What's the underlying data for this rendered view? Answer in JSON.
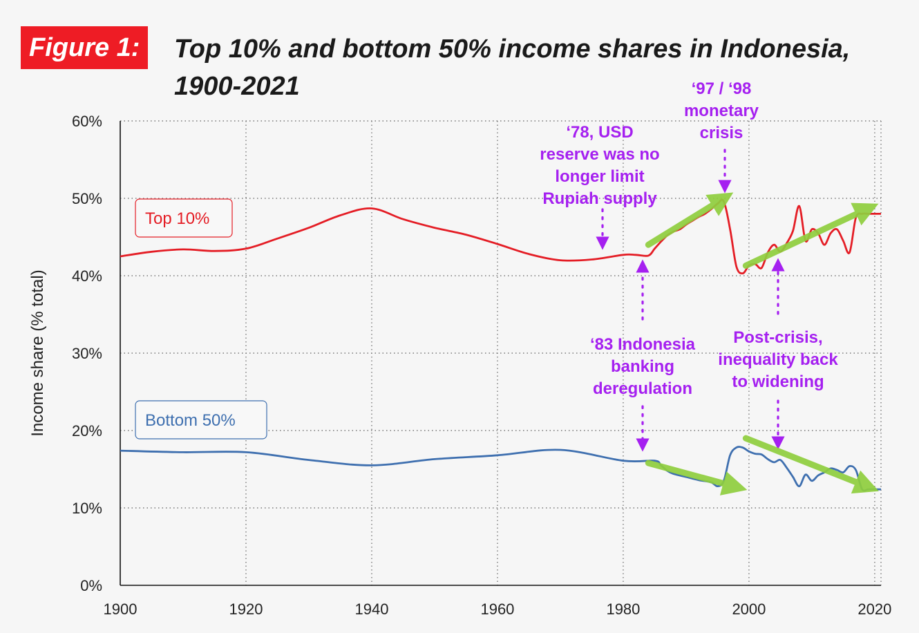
{
  "figure": {
    "badge": "Figure 1:",
    "title_line1": "Top 10% and bottom 50% income shares in Indonesia,",
    "title_line2": "1900-2021"
  },
  "colors": {
    "top10": "#e41d25",
    "bottom50": "#3e6faf",
    "annotation": "#a520f0",
    "trend_arrow": "#8fce3e",
    "badge": "#ee1c25"
  },
  "chart_data": {
    "type": "line",
    "title": "Top 10% and bottom 50% income shares in Indonesia, 1900-2021",
    "xlabel": "",
    "ylabel": "Income share (% total)",
    "xlim": [
      1900,
      2021
    ],
    "ylim": [
      0,
      60
    ],
    "x_ticks": [
      1900,
      1920,
      1940,
      1960,
      1980,
      2000,
      2020
    ],
    "y_ticks": [
      0,
      10,
      20,
      30,
      40,
      50,
      60
    ],
    "y_tick_labels": [
      "0%",
      "10%",
      "20%",
      "30%",
      "40%",
      "50%",
      "60%"
    ],
    "grid": "dotted",
    "series": [
      {
        "name": "Top 10%",
        "x": [
          1900,
          1905,
          1910,
          1915,
          1920,
          1925,
          1930,
          1935,
          1940,
          1945,
          1950,
          1955,
          1960,
          1965,
          1970,
          1975,
          1980,
          1982,
          1984,
          1985,
          1986,
          1987,
          1988,
          1989,
          1990,
          1991,
          1992,
          1993,
          1994,
          1995,
          1996,
          1997,
          1998,
          1999,
          2000,
          2001,
          2002,
          2003,
          2004,
          2005,
          2006,
          2007,
          2008,
          2009,
          2010,
          2011,
          2012,
          2013,
          2014,
          2015,
          2016,
          2017,
          2018,
          2019,
          2020,
          2021
        ],
        "values": [
          42.5,
          43.1,
          43.4,
          43.2,
          43.5,
          44.8,
          46.2,
          47.8,
          48.7,
          47.3,
          46.2,
          45.3,
          44.1,
          42.8,
          42.0,
          42.1,
          42.7,
          42.7,
          42.6,
          43.5,
          44.4,
          45.2,
          45.7,
          46.0,
          46.6,
          47.1,
          47.6,
          48.0,
          48.6,
          49.3,
          49.6,
          46.0,
          41.2,
          40.3,
          41.3,
          41.5,
          41.0,
          43.0,
          44.0,
          43.1,
          44.2,
          45.8,
          49.0,
          44.5,
          46.0,
          45.5,
          44.0,
          45.5,
          46.0,
          44.5,
          43.0,
          47.5,
          48.0,
          48.0,
          48.0,
          48.0
        ]
      },
      {
        "name": "Bottom 50%",
        "x": [
          1900,
          1910,
          1920,
          1930,
          1940,
          1950,
          1960,
          1970,
          1980,
          1985,
          1986,
          1987,
          1988,
          1990,
          1992,
          1994,
          1995,
          1996,
          1997,
          1998,
          1999,
          2000,
          2001,
          2002,
          2003,
          2004,
          2005,
          2006,
          2007,
          2008,
          2009,
          2010,
          2011,
          2012,
          2013,
          2014,
          2015,
          2016,
          2017,
          2018,
          2019,
          2020,
          2021
        ],
        "values": [
          17.4,
          17.2,
          17.2,
          16.2,
          15.5,
          16.3,
          16.8,
          17.5,
          16.1,
          16.1,
          15.5,
          14.8,
          14.4,
          14.0,
          13.6,
          13.3,
          12.8,
          13.5,
          16.8,
          17.8,
          17.8,
          17.3,
          17.0,
          16.9,
          16.3,
          15.9,
          16.2,
          15.2,
          14.0,
          12.8,
          14.3,
          13.5,
          14.2,
          14.6,
          15.1,
          14.9,
          14.6,
          15.4,
          14.9,
          12.4,
          12.4,
          12.4,
          12.4
        ]
      }
    ],
    "legend": [
      {
        "label": "Top 10%",
        "position": "left, above series"
      },
      {
        "label": "Bottom 50%",
        "position": "left, above series"
      }
    ],
    "annotations": [
      {
        "text_lines": [
          "‘78, USD",
          "reserve was no",
          "longer limit",
          "Rupiah supply"
        ],
        "year": 1977,
        "points_to": "Top 10%"
      },
      {
        "text_lines": [
          "‘97 / ‘98",
          "monetary",
          "crisis"
        ],
        "year": 1996,
        "points_to": "Top 10%"
      },
      {
        "text_lines": [
          "‘83 Indonesia",
          "banking",
          "deregulation"
        ],
        "year": 1983.5,
        "points_to": "both"
      },
      {
        "text_lines": [
          "Post-crisis,",
          "inequality back",
          "to widening"
        ],
        "year": 2005,
        "points_to": "both"
      }
    ],
    "trend_arrows": [
      {
        "series": "Top 10%",
        "from": [
          1984,
          44
        ],
        "to": [
          1996,
          50
        ]
      },
      {
        "series": "Top 10%",
        "from": [
          1999.5,
          41.3
        ],
        "to": [
          2019,
          48.7
        ]
      },
      {
        "series": "Bottom 50%",
        "from": [
          1984,
          15.8
        ],
        "to": [
          1998,
          12.7
        ]
      },
      {
        "series": "Bottom 50%",
        "from": [
          1999.5,
          19
        ],
        "to": [
          2019,
          12.7
        ]
      }
    ]
  }
}
